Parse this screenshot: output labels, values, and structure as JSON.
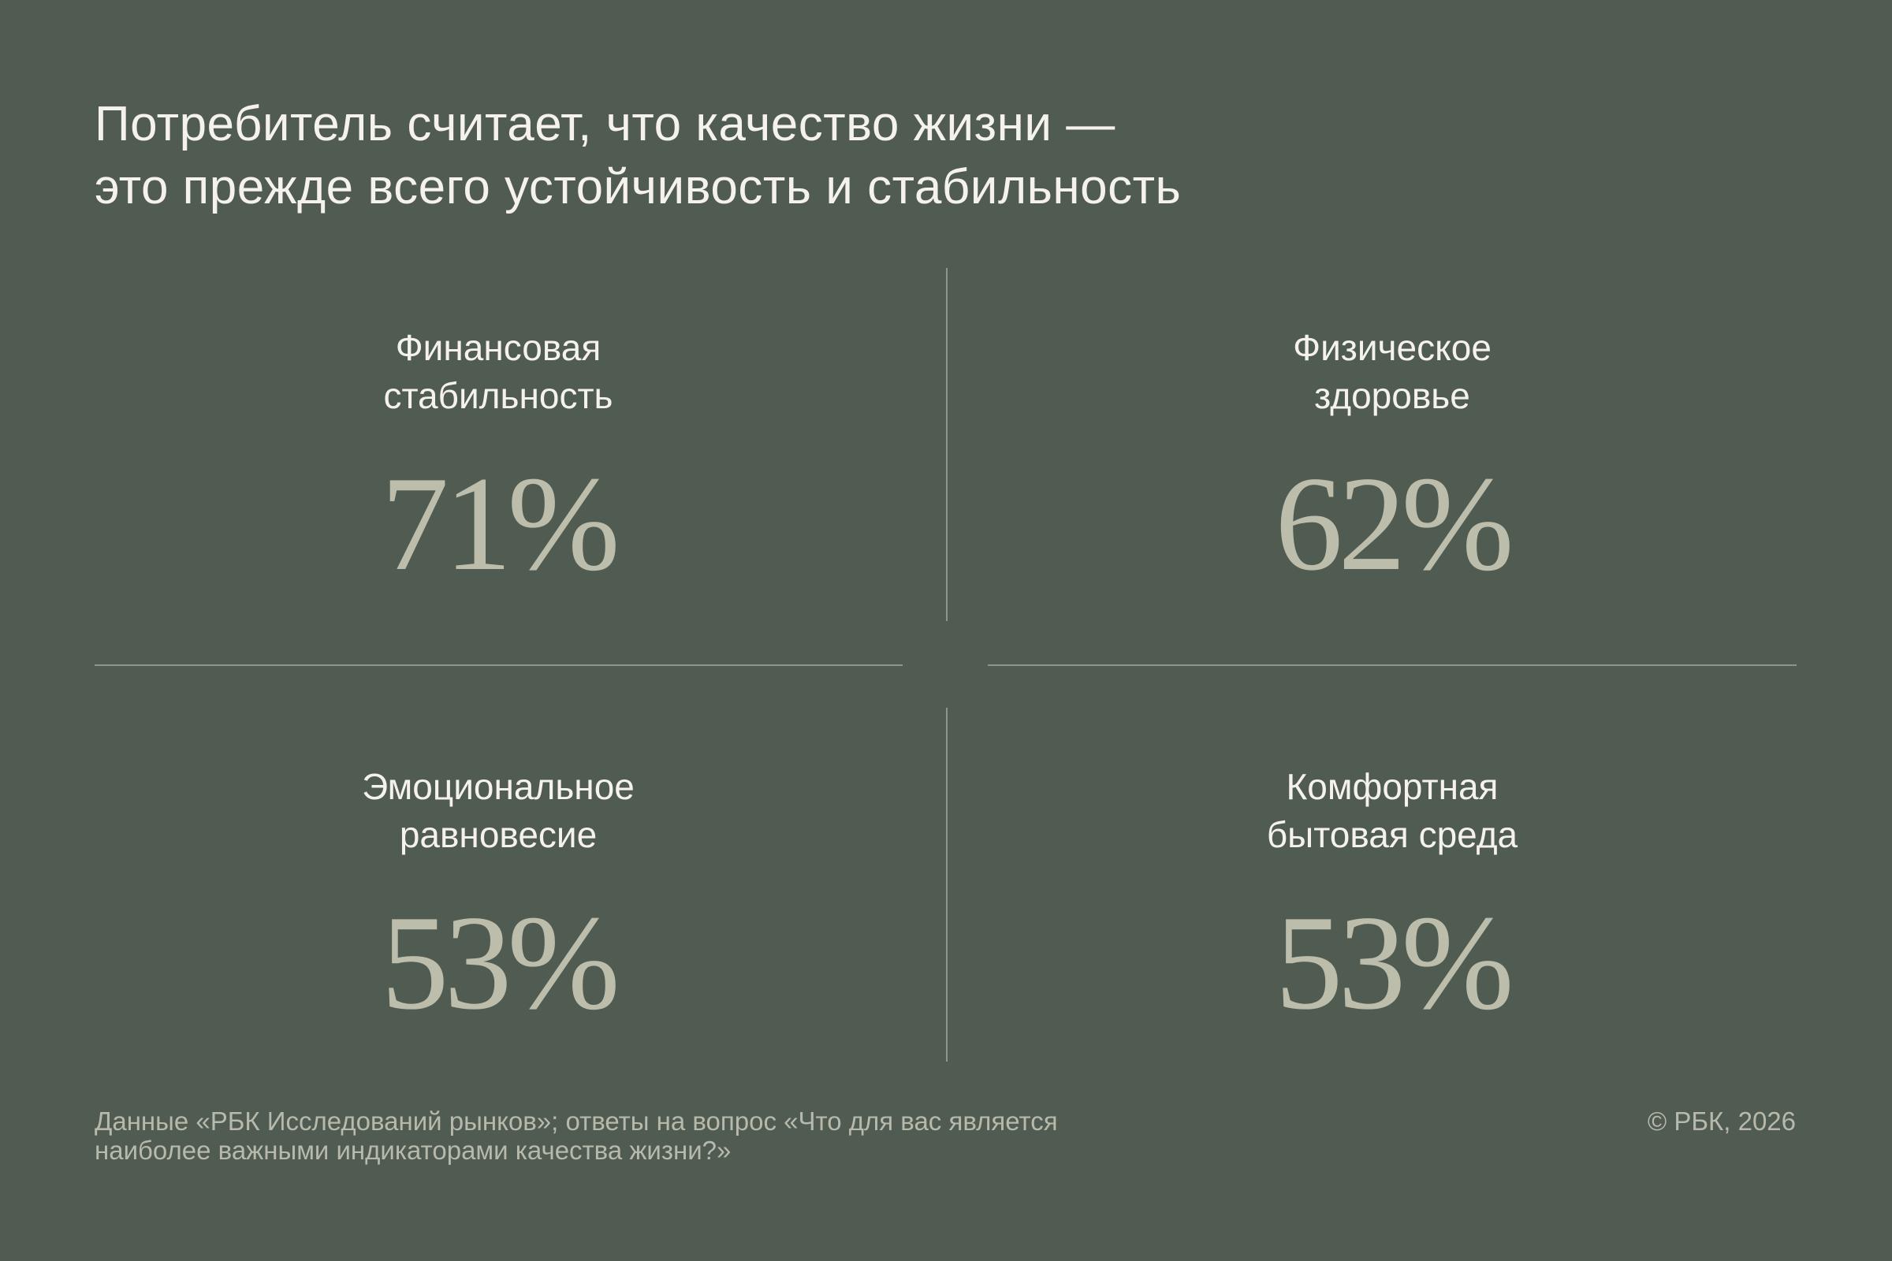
{
  "title": {
    "line1": "Потребитель считает, что качество жизни —",
    "line2": "это прежде всего устойчивость и стабильность"
  },
  "items": [
    {
      "label_line1": "Финансовая",
      "label_line2": "стабильность",
      "value": "71%",
      "percent": 71
    },
    {
      "label_line1": "Физическое",
      "label_line2": "здоровье",
      "value": "62%",
      "percent": 62
    },
    {
      "label_line1": "Эмоциональное",
      "label_line2": "равновесие",
      "value": "53%",
      "percent": 53
    },
    {
      "label_line1": "Комфортная",
      "label_line2": "бытовая среда",
      "value": "53%",
      "percent": 53
    }
  ],
  "footer": {
    "source_line1": "Данные «РБК Исследований рынков»; ответы на вопрос «Что для вас является",
    "source_line2": "наиболее важными индикаторами качества жизни?»",
    "copyright": "© РБК, 2026"
  },
  "colors": {
    "background": "#505b51",
    "value": "#bdbdab",
    "text": "#f4f2ea"
  }
}
